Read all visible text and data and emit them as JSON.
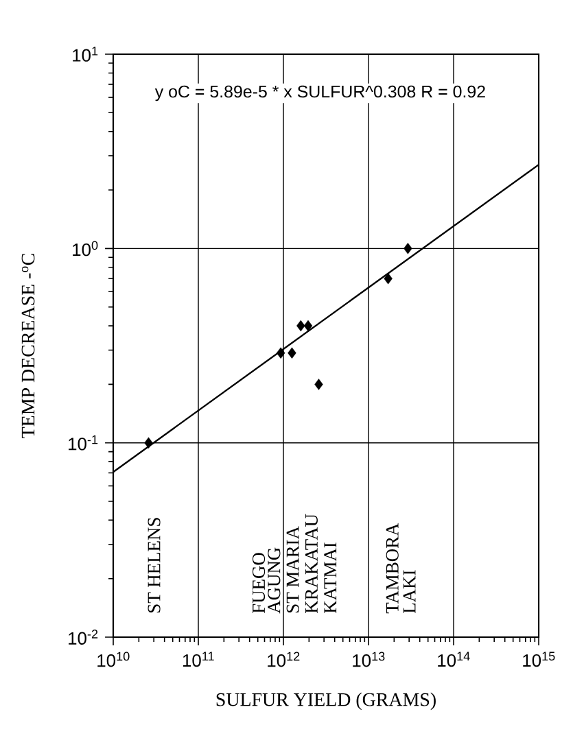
{
  "chart_data": {
    "type": "scatter",
    "xlabel": "SULFUR YIELD (GRAMS)",
    "ylabel": "TEMP DECREASE -$^{o}$C",
    "annotations": [
      "y oC = 5.89e-5 * x SULFUR^0.308 R = 0.92",
      "ST HELENS",
      "FUEGO",
      "AGUNG",
      "ST MARIA",
      "KRAKATAU",
      "KATMAI",
      "TAMBORA",
      "LAKI"
    ],
    "series": [
      {
        "color": "#000000",
        "marker": "diamond",
        "x": [
          26000000000.0,
          930000000000.0,
          1260000000000.0,
          1600000000000.0,
          1950000000000.0,
          2600000000000.0,
          17000000000000.0,
          29000000000000.0
        ],
        "values": [
          0.1,
          0.29,
          0.29,
          0.4,
          0.4,
          0.2,
          0.7,
          1.0
        ]
      },
      {
        "type": "line",
        "color": "#000000",
        "marker": "none",
        "line_style": "solid",
        "x": [
          10000000000.0,
          1000000000000000.0
        ],
        "values": [
          0.0708,
          2.7
        ]
      }
    ],
    "log": "xy",
    "xlim": [
      10000000000.0,
      1000000000000000.0
    ],
    "ylim": [
      0.01,
      10
    ],
    "xticks": [
      {
        "value": 10000000000.0,
        "label": "10$^{10}$"
      },
      {
        "value": 100000000000.0,
        "label": "10$^{11}$"
      },
      {
        "value": 1000000000000.0,
        "label": "10$^{12}$"
      },
      {
        "value": 10000000000000.0,
        "label": "10$^{13}$"
      },
      {
        "value": 100000000000000.0,
        "label": "10$^{14}$"
      },
      {
        "value": 1000000000000000.0,
        "label": "10$^{15}$"
      }
    ],
    "yticks": [
      {
        "value": 0.01,
        "label": "10$^{-2}$"
      },
      {
        "value": 0.1,
        "label": "10$^{-1}$"
      },
      {
        "value": 1,
        "label": "10$^{0}$"
      },
      {
        "value": 10,
        "label": "10$^{1}$"
      }
    ],
    "grid": true
  }
}
